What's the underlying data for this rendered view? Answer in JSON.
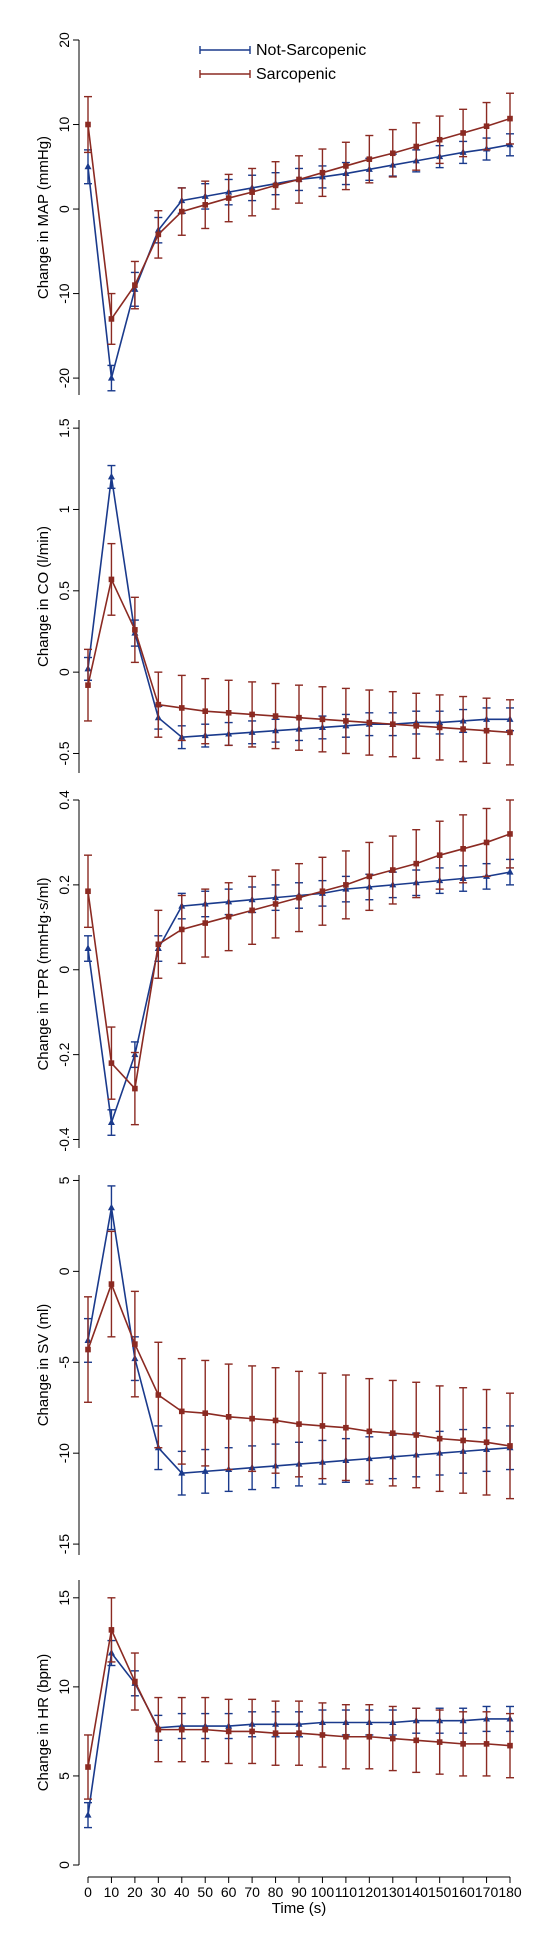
{
  "colors": {
    "not_sarcopenic": "#1a3a8c",
    "sarcopenic": "#8b2a22",
    "axis": "#000000"
  },
  "legend": {
    "position": "top-center",
    "items": [
      {
        "label": "Not-Sarcopenic",
        "color": "#1a3a8c"
      },
      {
        "label": "Sarcopenic",
        "color": "#8b2a22"
      }
    ]
  },
  "chart_data": [
    {
      "type": "line",
      "ylabel": "Change in MAP (mmHg)",
      "ylim": [
        -22,
        20
      ],
      "yticks": [
        -20,
        -10,
        0,
        10,
        20
      ],
      "x": [
        0,
        10,
        20,
        30,
        40,
        50,
        60,
        70,
        80,
        90,
        100,
        110,
        120,
        130,
        140,
        150,
        160,
        170,
        180
      ],
      "series": [
        {
          "name": "Not-Sarcopenic",
          "values": [
            5,
            -20,
            -9.5,
            -2.5,
            1,
            1.5,
            2,
            2.5,
            3,
            3.5,
            3.8,
            4.2,
            4.7,
            5.2,
            5.7,
            6.2,
            6.7,
            7.1,
            7.6
          ],
          "err": [
            2,
            1.5,
            2,
            1.5,
            1.5,
            1.5,
            1.5,
            1.5,
            1.3,
            1.3,
            1.3,
            1.3,
            1.3,
            1.3,
            1.3,
            1.3,
            1.3,
            1.3,
            1.3
          ]
        },
        {
          "name": "Sarcopenic",
          "values": [
            10,
            -13,
            -9,
            -3,
            -0.3,
            0.5,
            1.3,
            2,
            2.8,
            3.5,
            4.3,
            5.1,
            5.9,
            6.6,
            7.4,
            8.2,
            9,
            9.8,
            10.7
          ],
          "err": [
            3.3,
            3,
            2.8,
            2.8,
            2.8,
            2.8,
            2.8,
            2.8,
            2.8,
            2.8,
            2.8,
            2.8,
            2.8,
            2.8,
            2.8,
            2.8,
            2.8,
            2.8,
            3
          ]
        }
      ]
    },
    {
      "type": "line",
      "ylabel": "Change in CO (l/min)",
      "ylim": [
        -0.62,
        1.55
      ],
      "yticks": [
        -0.5,
        0,
        0.5,
        1,
        1.5
      ],
      "x": [
        0,
        10,
        20,
        30,
        40,
        50,
        60,
        70,
        80,
        90,
        100,
        110,
        120,
        130,
        140,
        150,
        160,
        170,
        180
      ],
      "series": [
        {
          "name": "Not-Sarcopenic",
          "values": [
            0.02,
            1.2,
            0.24,
            -0.28,
            -0.4,
            -0.39,
            -0.38,
            -0.37,
            -0.36,
            -0.35,
            -0.34,
            -0.33,
            -0.32,
            -0.32,
            -0.31,
            -0.31,
            -0.3,
            -0.29,
            -0.29
          ],
          "err": [
            0.07,
            0.07,
            0.08,
            0.07,
            0.07,
            0.07,
            0.07,
            0.07,
            0.07,
            0.07,
            0.07,
            0.07,
            0.07,
            0.07,
            0.07,
            0.07,
            0.07,
            0.07,
            0.07
          ]
        },
        {
          "name": "Sarcopenic",
          "values": [
            -0.08,
            0.57,
            0.26,
            -0.2,
            -0.22,
            -0.24,
            -0.25,
            -0.26,
            -0.27,
            -0.28,
            -0.29,
            -0.3,
            -0.31,
            -0.32,
            -0.33,
            -0.34,
            -0.35,
            -0.36,
            -0.37
          ],
          "err": [
            0.22,
            0.22,
            0.2,
            0.2,
            0.2,
            0.2,
            0.2,
            0.2,
            0.2,
            0.2,
            0.2,
            0.2,
            0.2,
            0.2,
            0.2,
            0.2,
            0.2,
            0.2,
            0.2
          ]
        }
      ]
    },
    {
      "type": "line",
      "ylabel": "Change in TPR (mmHg·s/ml)",
      "ylim": [
        -0.42,
        0.4
      ],
      "yticks": [
        -0.4,
        -0.2,
        0,
        0.2,
        0.4
      ],
      "x": [
        0,
        10,
        20,
        30,
        40,
        50,
        60,
        70,
        80,
        90,
        100,
        110,
        120,
        130,
        140,
        150,
        160,
        170,
        180
      ],
      "series": [
        {
          "name": "Not-Sarcopenic",
          "values": [
            0.05,
            -0.36,
            -0.2,
            0.05,
            0.15,
            0.155,
            0.16,
            0.165,
            0.17,
            0.175,
            0.18,
            0.19,
            0.195,
            0.2,
            0.205,
            0.21,
            0.215,
            0.22,
            0.23
          ],
          "err": [
            0.03,
            0.03,
            0.03,
            0.03,
            0.03,
            0.03,
            0.03,
            0.03,
            0.03,
            0.03,
            0.03,
            0.03,
            0.03,
            0.03,
            0.03,
            0.03,
            0.03,
            0.03,
            0.03
          ]
        },
        {
          "name": "Sarcopenic",
          "values": [
            0.185,
            -0.22,
            -0.28,
            0.06,
            0.095,
            0.11,
            0.125,
            0.14,
            0.155,
            0.17,
            0.185,
            0.2,
            0.22,
            0.235,
            0.25,
            0.27,
            0.285,
            0.3,
            0.32
          ],
          "err": [
            0.085,
            0.085,
            0.085,
            0.08,
            0.08,
            0.08,
            0.08,
            0.08,
            0.08,
            0.08,
            0.08,
            0.08,
            0.08,
            0.08,
            0.08,
            0.08,
            0.08,
            0.08,
            0.08
          ]
        }
      ]
    },
    {
      "type": "line",
      "ylabel": "Change in SV (ml)",
      "ylim": [
        -15.6,
        5.3
      ],
      "yticks": [
        -15,
        -10,
        -5,
        0,
        5
      ],
      "x": [
        0,
        10,
        20,
        30,
        40,
        50,
        60,
        70,
        80,
        90,
        100,
        110,
        120,
        130,
        140,
        150,
        160,
        170,
        180
      ],
      "series": [
        {
          "name": "Not-Sarcopenic",
          "values": [
            -3.8,
            3.5,
            -4.8,
            -9.7,
            -11.1,
            -11,
            -10.9,
            -10.8,
            -10.7,
            -10.6,
            -10.5,
            -10.4,
            -10.3,
            -10.2,
            -10.1,
            -10,
            -9.9,
            -9.8,
            -9.7
          ],
          "err": [
            1.2,
            1.2,
            1.2,
            1.2,
            1.2,
            1.2,
            1.2,
            1.2,
            1.2,
            1.2,
            1.2,
            1.2,
            1.2,
            1.2,
            1.2,
            1.2,
            1.2,
            1.2,
            1.2
          ]
        },
        {
          "name": "Sarcopenic",
          "values": [
            -4.3,
            -0.7,
            -4,
            -6.8,
            -7.7,
            -7.8,
            -8,
            -8.1,
            -8.2,
            -8.4,
            -8.5,
            -8.6,
            -8.8,
            -8.9,
            -9,
            -9.2,
            -9.3,
            -9.4,
            -9.6
          ],
          "err": [
            2.9,
            2.9,
            2.9,
            2.9,
            2.9,
            2.9,
            2.9,
            2.9,
            2.9,
            2.9,
            2.9,
            2.9,
            2.9,
            2.9,
            2.9,
            2.9,
            2.9,
            2.9,
            2.9
          ]
        }
      ]
    },
    {
      "type": "line",
      "ylabel": "Change in HR (bpm)",
      "xlabel": "Time (s)",
      "ylim": [
        0,
        16
      ],
      "yticks": [
        0,
        5,
        10,
        15
      ],
      "x": [
        0,
        10,
        20,
        30,
        40,
        50,
        60,
        70,
        80,
        90,
        100,
        110,
        120,
        130,
        140,
        150,
        160,
        170,
        180
      ],
      "xticks": [
        "0",
        "10",
        "20",
        "30",
        "40",
        "50",
        "60",
        "70",
        "80",
        "90",
        "100",
        "110",
        "120",
        "130",
        "140",
        "150",
        "160",
        "170",
        "180"
      ],
      "series": [
        {
          "name": "Not-Sarcopenic",
          "values": [
            2.8,
            11.9,
            10.2,
            7.7,
            7.8,
            7.8,
            7.8,
            7.9,
            7.9,
            7.9,
            8,
            8,
            8,
            8,
            8.1,
            8.1,
            8.1,
            8.2,
            8.2
          ],
          "err": [
            0.7,
            0.7,
            0.7,
            0.7,
            0.7,
            0.7,
            0.7,
            0.7,
            0.7,
            0.7,
            0.7,
            0.7,
            0.7,
            0.7,
            0.7,
            0.7,
            0.7,
            0.7,
            0.7
          ]
        },
        {
          "name": "Sarcopenic",
          "values": [
            5.5,
            13.2,
            10.3,
            7.6,
            7.6,
            7.6,
            7.5,
            7.5,
            7.4,
            7.4,
            7.3,
            7.2,
            7.2,
            7.1,
            7,
            6.9,
            6.8,
            6.8,
            6.7
          ],
          "err": [
            1.8,
            1.8,
            1.6,
            1.8,
            1.8,
            1.8,
            1.8,
            1.8,
            1.8,
            1.8,
            1.8,
            1.8,
            1.8,
            1.8,
            1.8,
            1.8,
            1.8,
            1.8,
            1.8
          ]
        }
      ]
    }
  ]
}
